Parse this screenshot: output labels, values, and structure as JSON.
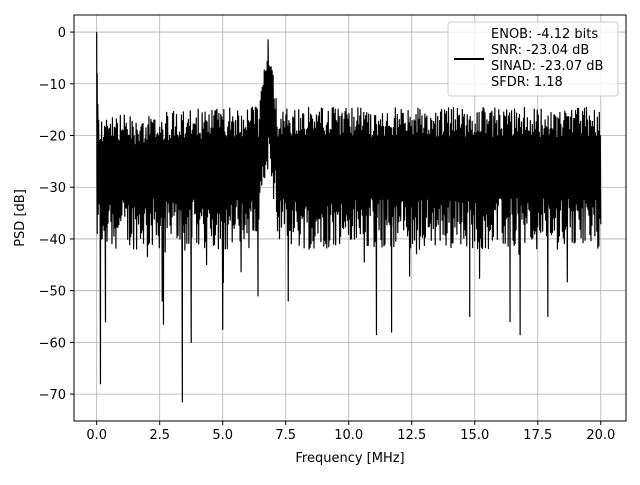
{
  "chart_data": {
    "type": "line",
    "title": "",
    "xlabel": "Frequency [MHz]",
    "ylabel": "PSD [dB]",
    "xlim": [
      -0.9,
      21.0
    ],
    "ylim": [
      -75.2,
      3.3
    ],
    "x_ticks": [
      0.0,
      2.5,
      5.0,
      7.5,
      10.0,
      12.5,
      15.0,
      17.5,
      20.0
    ],
    "x_tick_labels": [
      "0.0",
      "2.5",
      "5.0",
      "7.5",
      "10.0",
      "12.5",
      "15.0",
      "17.5",
      "20.0"
    ],
    "y_ticks": [
      0,
      -10,
      -20,
      -30,
      -40,
      -50,
      -60,
      -70
    ],
    "y_tick_labels": [
      "0",
      "−10",
      "−20",
      "−30",
      "−40",
      "−50",
      "−60",
      "−70"
    ],
    "grid": true,
    "legend_position": "top-right",
    "legend_lines": [
      "ENOB: -4.12 bits",
      "SNR: -23.04 dB",
      "SINAD: -23.07 dB",
      "SFDR: 1.18"
    ],
    "series": [
      {
        "color": "#000000",
        "x_range": [
          0.0,
          20.0
        ],
        "points_count": 1024,
        "upper_envelope_db": -14,
        "lower_envelope_db": -38,
        "dc_peak": {
          "x": 0.0,
          "y": 0.0
        },
        "tone_peak": {
          "x": 6.8,
          "y": -1.5
        },
        "notable_minima": [
          {
            "x": 0.15,
            "y": -68.0
          },
          {
            "x": 0.35,
            "y": -56.0
          },
          {
            "x": 2.6,
            "y": -52.0
          },
          {
            "x": 2.65,
            "y": -56.5
          },
          {
            "x": 3.4,
            "y": -71.5
          },
          {
            "x": 3.75,
            "y": -60.0
          },
          {
            "x": 5.0,
            "y": -57.5
          },
          {
            "x": 6.4,
            "y": -51.0
          },
          {
            "x": 7.6,
            "y": -52.0
          },
          {
            "x": 11.1,
            "y": -58.5
          },
          {
            "x": 11.7,
            "y": -58.0
          },
          {
            "x": 14.8,
            "y": -55.0
          },
          {
            "x": 16.4,
            "y": -56.0
          },
          {
            "x": 16.8,
            "y": -58.5
          },
          {
            "x": 17.9,
            "y": -55.0
          }
        ]
      }
    ]
  }
}
